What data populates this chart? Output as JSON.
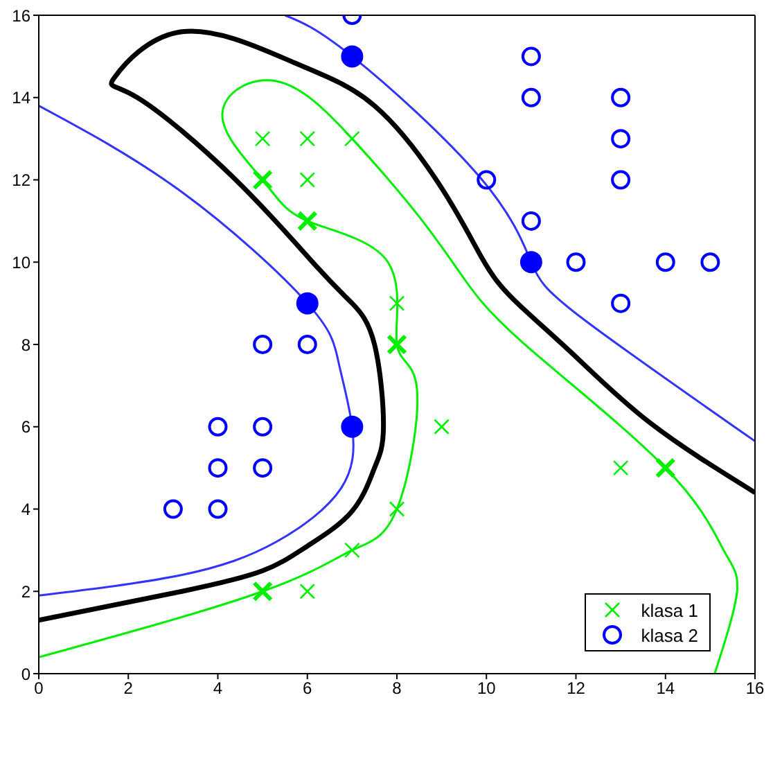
{
  "chart_data": {
    "type": "scatter",
    "xlim": [
      0,
      16
    ],
    "ylim": [
      0,
      16
    ],
    "xticks": [
      0,
      2,
      4,
      6,
      8,
      10,
      12,
      14,
      16
    ],
    "yticks": [
      0,
      2,
      4,
      6,
      8,
      10,
      12,
      14,
      16
    ],
    "legend": "bottom right",
    "series": [
      {
        "type": "line",
        "color": "#000000",
        "marker": "none",
        "x": [
          0,
          3.2,
          5,
          6,
          7,
          7.5,
          7.7,
          7.5,
          7,
          6.2,
          4.4,
          2.2,
          1.7,
          3.2,
          5.7,
          7.5,
          9.0,
          9.9,
          10.6,
          11.9,
          13.65,
          16
        ],
        "values": [
          1.3,
          2.0,
          2.5,
          3.1,
          3.95,
          5,
          6,
          8,
          9,
          9.9,
          12,
          14,
          14.5,
          15.6,
          14.85,
          13.8,
          11.8,
          10.1,
          9.1,
          7.8,
          6.1,
          4.4
        ]
      },
      {
        "type": "line",
        "color": "#3333ff",
        "marker": "none",
        "x": [
          0,
          3.2,
          6,
          6.7,
          7,
          6.75,
          5.3,
          3.2,
          0
        ],
        "values": [
          13.8,
          11.7,
          9,
          7.55,
          6,
          4.5,
          3.2,
          2.4,
          1.9
        ]
      },
      {
        "type": "line",
        "color": "#3333ff",
        "marker": "none",
        "x": [
          5.5,
          7,
          9.85,
          11,
          12.1,
          16
        ],
        "values": [
          16,
          15,
          12.07,
          10,
          8.67,
          5.65
        ]
      },
      {
        "type": "line",
        "color": "#00ee00",
        "marker": "none",
        "x": [
          0,
          5,
          7,
          8,
          8.45,
          8,
          7.8,
          6,
          5,
          4.1,
          5.3,
          7,
          8.5,
          9.5,
          10.9,
          14,
          15.3,
          15.6,
          15.1
        ],
        "values": [
          0.4,
          2,
          3,
          4,
          6.9,
          8,
          10,
          11,
          12,
          13.6,
          14.4,
          13,
          11.1,
          9.6,
          7.96,
          5,
          3,
          2,
          0
        ]
      },
      {
        "name": "klasa 1",
        "color": "#00ee00",
        "marker": "cross",
        "x": [
          5,
          6,
          7,
          6,
          8,
          8,
          9,
          8,
          7,
          6,
          13
        ],
        "values": [
          13,
          13,
          13,
          12,
          9,
          8,
          6,
          4,
          3,
          2,
          5
        ]
      },
      {
        "color": "#00ee00",
        "marker": "cross",
        "x": [
          5,
          6,
          8,
          5,
          14
        ],
        "values": [
          12,
          11,
          8,
          2,
          5
        ]
      },
      {
        "name": "klasa 2",
        "color": "#0000ff",
        "marker": "circle",
        "x": [
          7,
          11,
          11,
          13,
          13,
          10,
          13,
          11,
          12,
          14,
          15,
          13,
          5,
          6,
          4,
          5,
          4,
          5,
          3,
          4
        ],
        "values": [
          16,
          15,
          14,
          14,
          13,
          12,
          12,
          11,
          10,
          10,
          10,
          9,
          8,
          8,
          6,
          6,
          5,
          5,
          4,
          4
        ]
      },
      {
        "color": "#0000ff",
        "marker": "circle",
        "x": [
          7,
          11,
          6,
          7
        ],
        "values": [
          15,
          10,
          9,
          6
        ]
      }
    ]
  }
}
